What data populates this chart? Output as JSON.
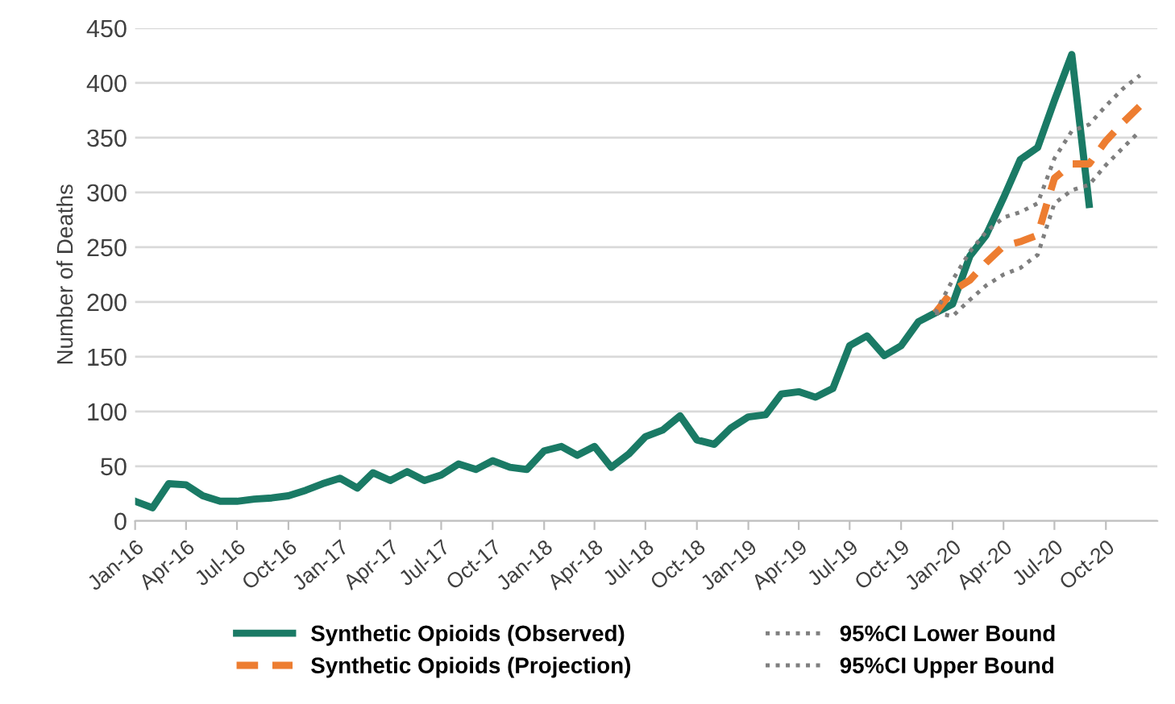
{
  "chart_data": {
    "type": "line",
    "ylabel": "Number of Deaths",
    "xlim": [
      "2016-01",
      "2021-01"
    ],
    "xticks": [
      {
        "value": "2016-01",
        "label": "Jan-16"
      },
      {
        "value": "2016-04",
        "label": "Apr-16"
      },
      {
        "value": "2016-07",
        "label": "Jul-16"
      },
      {
        "value": "2016-10",
        "label": "Oct-16"
      },
      {
        "value": "2017-01",
        "label": "Jan-17"
      },
      {
        "value": "2017-04",
        "label": "Apr-17"
      },
      {
        "value": "2017-07",
        "label": "Jul-17"
      },
      {
        "value": "2017-10",
        "label": "Oct-17"
      },
      {
        "value": "2018-01",
        "label": "Jan-18"
      },
      {
        "value": "2018-04",
        "label": "Apr-18"
      },
      {
        "value": "2018-07",
        "label": "Jul-18"
      },
      {
        "value": "2018-10",
        "label": "Oct-18"
      },
      {
        "value": "2019-01",
        "label": "Jan-19"
      },
      {
        "value": "2019-04",
        "label": "Apr-19"
      },
      {
        "value": "2019-07",
        "label": "Jul-19"
      },
      {
        "value": "2019-10",
        "label": "Oct-19"
      },
      {
        "value": "2020-01",
        "label": "Jan-20"
      },
      {
        "value": "2020-04",
        "label": "Apr-20"
      },
      {
        "value": "2020-07",
        "label": "Jul-20"
      },
      {
        "value": "2020-10",
        "label": "Oct-20"
      }
    ],
    "ylim": [
      0,
      450
    ],
    "yticks": [
      0,
      50,
      100,
      150,
      200,
      250,
      300,
      350,
      400,
      450
    ],
    "grid": "y",
    "legend": "bottom",
    "series": [
      {
        "name": "Synthetic Opioids (Observed)",
        "color": "#1a7a65",
        "line_style": "solid",
        "x": [
          "2016-01",
          "2016-02",
          "2016-03",
          "2016-04",
          "2016-05",
          "2016-06",
          "2016-07",
          "2016-08",
          "2016-09",
          "2016-10",
          "2016-11",
          "2016-12",
          "2017-01",
          "2017-02",
          "2017-03",
          "2017-04",
          "2017-05",
          "2017-06",
          "2017-07",
          "2017-08",
          "2017-09",
          "2017-10",
          "2017-11",
          "2017-12",
          "2018-01",
          "2018-02",
          "2018-03",
          "2018-04",
          "2018-05",
          "2018-06",
          "2018-07",
          "2018-08",
          "2018-09",
          "2018-10",
          "2018-11",
          "2018-12",
          "2019-01",
          "2019-02",
          "2019-03",
          "2019-04",
          "2019-05",
          "2019-06",
          "2019-07",
          "2019-08",
          "2019-09",
          "2019-10",
          "2019-11",
          "2019-12",
          "2020-01",
          "2020-02",
          "2020-03",
          "2020-04",
          "2020-05",
          "2020-06",
          "2020-07",
          "2020-08",
          "2020-09"
        ],
        "values": [
          18,
          12,
          34,
          33,
          23,
          18,
          18,
          20,
          21,
          23,
          28,
          34,
          39,
          30,
          44,
          37,
          45,
          37,
          42,
          52,
          47,
          55,
          49,
          47,
          64,
          68,
          60,
          68,
          49,
          61,
          77,
          83,
          96,
          74,
          70,
          85,
          95,
          97,
          116,
          118,
          113,
          121,
          160,
          169,
          151,
          160,
          182,
          190,
          198,
          242,
          261,
          295,
          330,
          341,
          384,
          426,
          289
        ]
      },
      {
        "name": "Synthetic Opioids (Projection)",
        "color": "#ed7d31",
        "line_style": "dashed",
        "x": [
          "2019-12",
          "2020-01",
          "2020-02",
          "2020-03",
          "2020-04",
          "2020-05",
          "2020-06",
          "2020-07",
          "2020-08",
          "2020-09",
          "2020-10",
          "2020-11",
          "2020-12"
        ],
        "values": [
          190,
          210,
          220,
          236,
          251,
          255,
          261,
          313,
          326,
          326,
          347,
          364,
          379
        ]
      },
      {
        "name": "95%CI Lower Bound",
        "color": "#7f7f7f",
        "line_style": "dotted",
        "x": [
          "2019-12",
          "2020-01",
          "2020-02",
          "2020-03",
          "2020-04",
          "2020-05",
          "2020-06",
          "2020-07",
          "2020-08",
          "2020-09",
          "2020-10",
          "2020-11",
          "2020-12"
        ],
        "values": [
          190,
          187,
          202,
          215,
          225,
          231,
          243,
          290,
          302,
          307,
          325,
          341,
          356
        ]
      },
      {
        "name": "95%CI Upper Bound",
        "color": "#7f7f7f",
        "line_style": "dotted",
        "x": [
          "2019-12",
          "2020-01",
          "2020-02",
          "2020-03",
          "2020-04",
          "2020-05",
          "2020-06",
          "2020-07",
          "2020-08",
          "2020-09",
          "2020-10",
          "2020-11",
          "2020-12"
        ],
        "values": [
          190,
          220,
          246,
          264,
          277,
          282,
          290,
          331,
          356,
          362,
          379,
          395,
          407
        ]
      }
    ]
  }
}
